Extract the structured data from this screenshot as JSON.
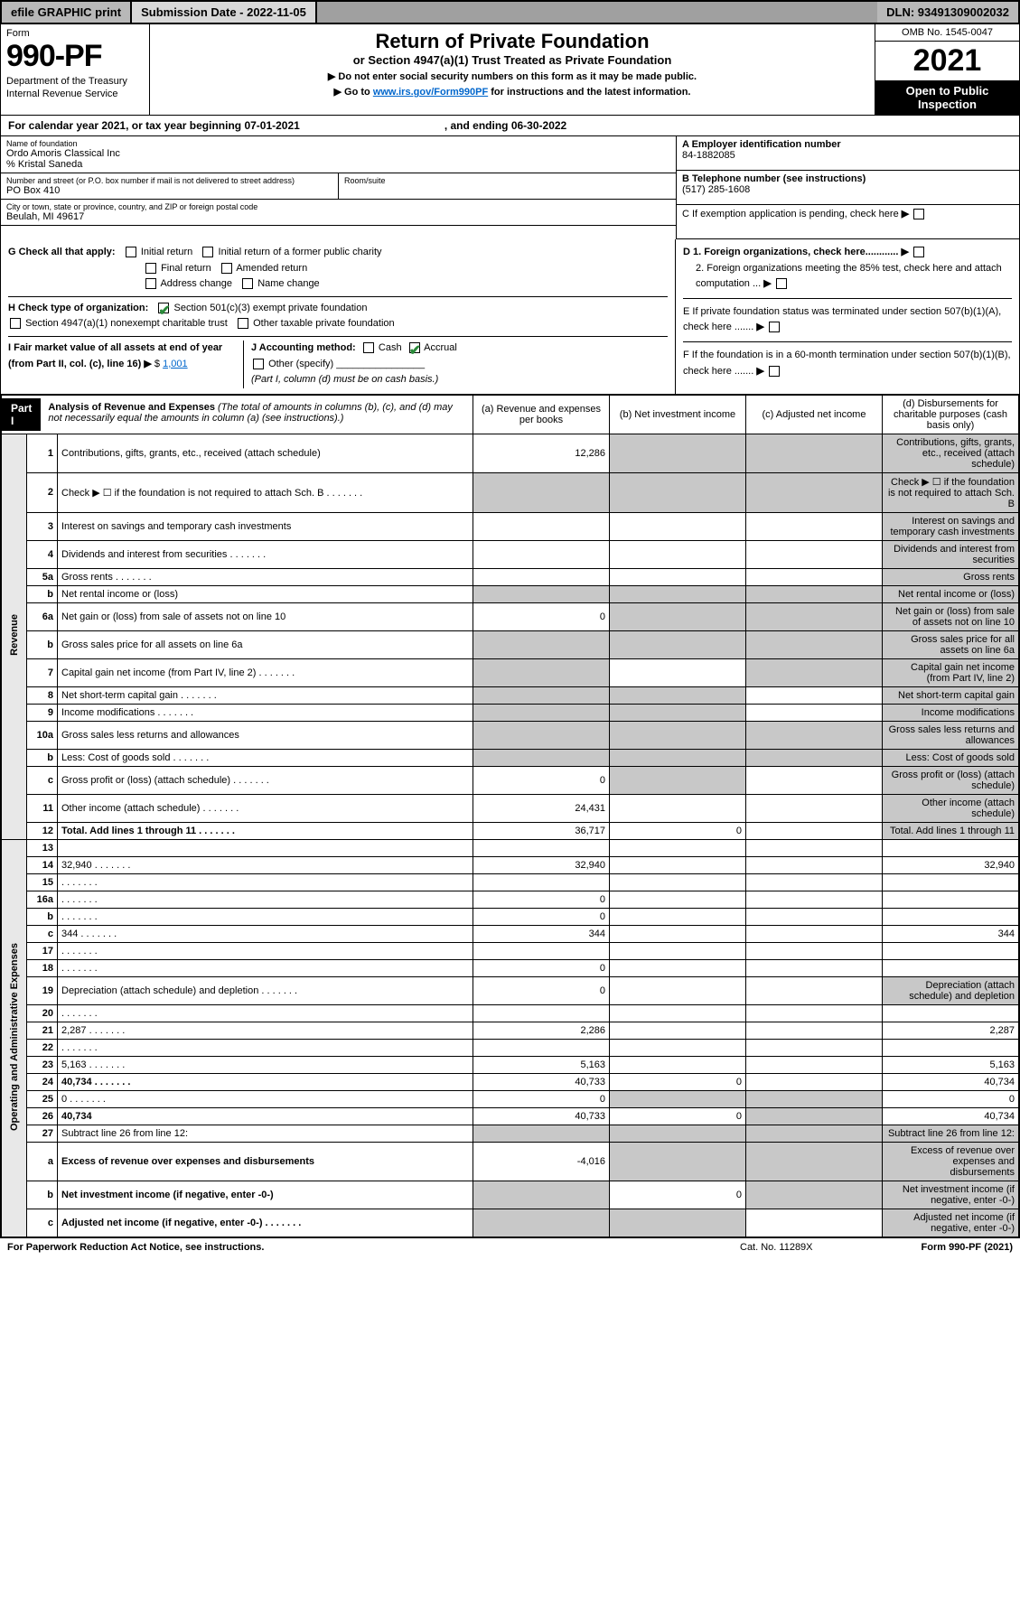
{
  "colors": {
    "black": "#000000",
    "white": "#ffffff",
    "gray_dark": "#a0a0a0",
    "gray_mid": "#b8b8b8",
    "gray_light": "#d8d8d8",
    "gray_shade": "#c8c8c8",
    "gray_side": "#e8e8e8",
    "link": "#0066cc",
    "check_green": "#2a8a3a"
  },
  "topbar": {
    "efile": "efile GRAPHIC print",
    "submission": "Submission Date - 2022-11-05",
    "dln": "DLN: 93491309002032"
  },
  "header": {
    "form_label": "Form",
    "form_number": "990-PF",
    "dept1": "Department of the Treasury",
    "dept2": "Internal Revenue Service",
    "title": "Return of Private Foundation",
    "subtitle": "or Section 4947(a)(1) Trust Treated as Private Foundation",
    "note1": "▶ Do not enter social security numbers on this form as it may be made public.",
    "note2_pre": "▶ Go to ",
    "note2_link": "www.irs.gov/Form990PF",
    "note2_post": " for instructions and the latest information.",
    "omb": "OMB No. 1545-0047",
    "year": "2021",
    "open": "Open to Public Inspection"
  },
  "calendar": {
    "text1": "For calendar year 2021, or tax year beginning 07-01-2021",
    "text2": ", and ending 06-30-2022"
  },
  "id": {
    "name_lbl": "Name of foundation",
    "name": "Ordo Amoris Classical Inc",
    "care_of": "% Kristal Saneda",
    "addr_lbl": "Number and street (or P.O. box number if mail is not delivered to street address)",
    "addr": "PO Box 410",
    "room_lbl": "Room/suite",
    "city_lbl": "City or town, state or province, country, and ZIP or foreign postal code",
    "city": "Beulah, MI  49617",
    "A_lbl": "A Employer identification number",
    "A_val": "84-1882085",
    "B_lbl": "B Telephone number (see instructions)",
    "B_val": "(517) 285-1608",
    "C_lbl": "C If exemption application is pending, check here",
    "D1": "D 1. Foreign organizations, check here............",
    "D2": "2. Foreign organizations meeting the 85% test, check here and attach computation ...",
    "E": "E  If private foundation status was terminated under section 507(b)(1)(A), check here .......",
    "F": "F  If the foundation is in a 60-month termination under section 507(b)(1)(B), check here .......",
    "G_lbl": "G Check all that apply:",
    "G_opts": [
      "Initial return",
      "Initial return of a former public charity",
      "Final return",
      "Amended return",
      "Address change",
      "Name change"
    ],
    "H_lbl": "H Check type of organization:",
    "H_opt1": "Section 501(c)(3) exempt private foundation",
    "H_opt2": "Section 4947(a)(1) nonexempt charitable trust",
    "H_opt3": "Other taxable private foundation",
    "I_lbl": "I Fair market value of all assets at end of year (from Part II, col. (c), line 16)",
    "I_val": "1,001",
    "J_lbl": "J Accounting method:",
    "J_cash": "Cash",
    "J_accrual": "Accrual",
    "J_other": "Other (specify)",
    "J_note": "(Part I, column (d) must be on cash basis.)"
  },
  "part1": {
    "label": "Part I",
    "title": "Analysis of Revenue and Expenses",
    "title_note": "(The total of amounts in columns (b), (c), and (d) may not necessarily equal the amounts in column (a) (see instructions).)",
    "col_a": "(a)  Revenue and expenses per books",
    "col_b": "(b)  Net investment income",
    "col_c": "(c)  Adjusted net income",
    "col_d": "(d)  Disbursements for charitable purposes (cash basis only)"
  },
  "side_labels": {
    "revenue": "Revenue",
    "expenses": "Operating and Administrative Expenses"
  },
  "rows": [
    {
      "n": "1",
      "d": "Contributions, gifts, grants, etc., received (attach schedule)",
      "a": "12,286",
      "b_shade": true,
      "c_shade": true,
      "d_shade": true
    },
    {
      "n": "2",
      "d": "Check ▶ ☐ if the foundation is not required to attach Sch. B",
      "dots": true,
      "a_shade": true,
      "b_shade": true,
      "c_shade": true,
      "d_shade": true
    },
    {
      "n": "3",
      "d": "Interest on savings and temporary cash investments",
      "a": "",
      "b": "",
      "c": "",
      "d_shade": true
    },
    {
      "n": "4",
      "d": "Dividends and interest from securities",
      "dots": true,
      "a": "",
      "b": "",
      "c": "",
      "d_shade": true
    },
    {
      "n": "5a",
      "d": "Gross rents",
      "dots": true,
      "a": "",
      "b": "",
      "c": "",
      "d_shade": true
    },
    {
      "n": "b",
      "d": "Net rental income or (loss)",
      "a_shade": true,
      "b_shade": true,
      "c_shade": true,
      "d_shade": true
    },
    {
      "n": "6a",
      "d": "Net gain or (loss) from sale of assets not on line 10",
      "a": "0",
      "b_shade": true,
      "c_shade": true,
      "d_shade": true
    },
    {
      "n": "b",
      "d": "Gross sales price for all assets on line 6a",
      "a_shade": true,
      "b_shade": true,
      "c_shade": true,
      "d_shade": true
    },
    {
      "n": "7",
      "d": "Capital gain net income (from Part IV, line 2)",
      "dots": true,
      "a_shade": true,
      "b": "",
      "c_shade": true,
      "d_shade": true
    },
    {
      "n": "8",
      "d": "Net short-term capital gain",
      "dots": true,
      "a_shade": true,
      "b_shade": true,
      "c": "",
      "d_shade": true
    },
    {
      "n": "9",
      "d": "Income modifications",
      "dots": true,
      "a_shade": true,
      "b_shade": true,
      "c": "",
      "d_shade": true
    },
    {
      "n": "10a",
      "d": "Gross sales less returns and allowances",
      "a_shade": true,
      "b_shade": true,
      "c_shade": true,
      "d_shade": true
    },
    {
      "n": "b",
      "d": "Less: Cost of goods sold",
      "dots": true,
      "a_shade": true,
      "b_shade": true,
      "c_shade": true,
      "d_shade": true
    },
    {
      "n": "c",
      "d": "Gross profit or (loss) (attach schedule)",
      "dots": true,
      "a": "0",
      "b_shade": true,
      "c": "",
      "d_shade": true
    },
    {
      "n": "11",
      "d": "Other income (attach schedule)",
      "dots": true,
      "a": "24,431",
      "b": "",
      "c": "",
      "d_shade": true
    },
    {
      "n": "12",
      "d": "Total. Add lines 1 through 11",
      "dots": true,
      "bold": true,
      "a": "36,717",
      "b": "0",
      "c": "",
      "d_shade": true
    },
    {
      "n": "13",
      "d": "",
      "a": "",
      "b": "",
      "c": ""
    },
    {
      "n": "14",
      "d": "32,940",
      "dots": true,
      "a": "32,940",
      "b": "",
      "c": ""
    },
    {
      "n": "15",
      "d": "",
      "dots": true,
      "a": "",
      "b": "",
      "c": ""
    },
    {
      "n": "16a",
      "d": "",
      "dots": true,
      "a": "0",
      "b": "",
      "c": ""
    },
    {
      "n": "b",
      "d": "",
      "dots": true,
      "a": "0",
      "b": "",
      "c": ""
    },
    {
      "n": "c",
      "d": "344",
      "dots": true,
      "a": "344",
      "b": "",
      "c": ""
    },
    {
      "n": "17",
      "d": "",
      "dots": true,
      "a": "",
      "b": "",
      "c": ""
    },
    {
      "n": "18",
      "d": "",
      "dots": true,
      "a": "0",
      "b": "",
      "c": ""
    },
    {
      "n": "19",
      "d": "Depreciation (attach schedule) and depletion",
      "dots": true,
      "a": "0",
      "b": "",
      "c": "",
      "d_shade": true
    },
    {
      "n": "20",
      "d": "",
      "dots": true,
      "a": "",
      "b": "",
      "c": ""
    },
    {
      "n": "21",
      "d": "2,287",
      "dots": true,
      "a": "2,286",
      "b": "",
      "c": ""
    },
    {
      "n": "22",
      "d": "",
      "dots": true,
      "a": "",
      "b": "",
      "c": ""
    },
    {
      "n": "23",
      "d": "5,163",
      "dots": true,
      "a": "5,163",
      "b": "",
      "c": ""
    },
    {
      "n": "24",
      "d": "40,734",
      "dots": true,
      "bold": true,
      "a": "40,733",
      "b": "0",
      "c": ""
    },
    {
      "n": "25",
      "d": "0",
      "dots": true,
      "a": "0",
      "b_shade": true,
      "c_shade": true
    },
    {
      "n": "26",
      "d": "40,734",
      "bold": true,
      "a": "40,733",
      "b": "0",
      "c_shade": true
    },
    {
      "n": "27",
      "d": "Subtract line 26 from line 12:",
      "a_shade": true,
      "b_shade": true,
      "c_shade": true,
      "d_shade": true
    },
    {
      "n": "a",
      "d": "Excess of revenue over expenses and disbursements",
      "bold": true,
      "a": "-4,016",
      "b_shade": true,
      "c_shade": true,
      "d_shade": true
    },
    {
      "n": "b",
      "d": "Net investment income (if negative, enter -0-)",
      "bold": true,
      "a_shade": true,
      "b": "0",
      "c_shade": true,
      "d_shade": true
    },
    {
      "n": "c",
      "d": "Adjusted net income (if negative, enter -0-)",
      "dots": true,
      "bold": true,
      "a_shade": true,
      "b_shade": true,
      "c": "",
      "d_shade": true
    }
  ],
  "footer": {
    "left": "For Paperwork Reduction Act Notice, see instructions.",
    "mid": "Cat. No. 11289X",
    "right": "Form 990-PF (2021)"
  }
}
